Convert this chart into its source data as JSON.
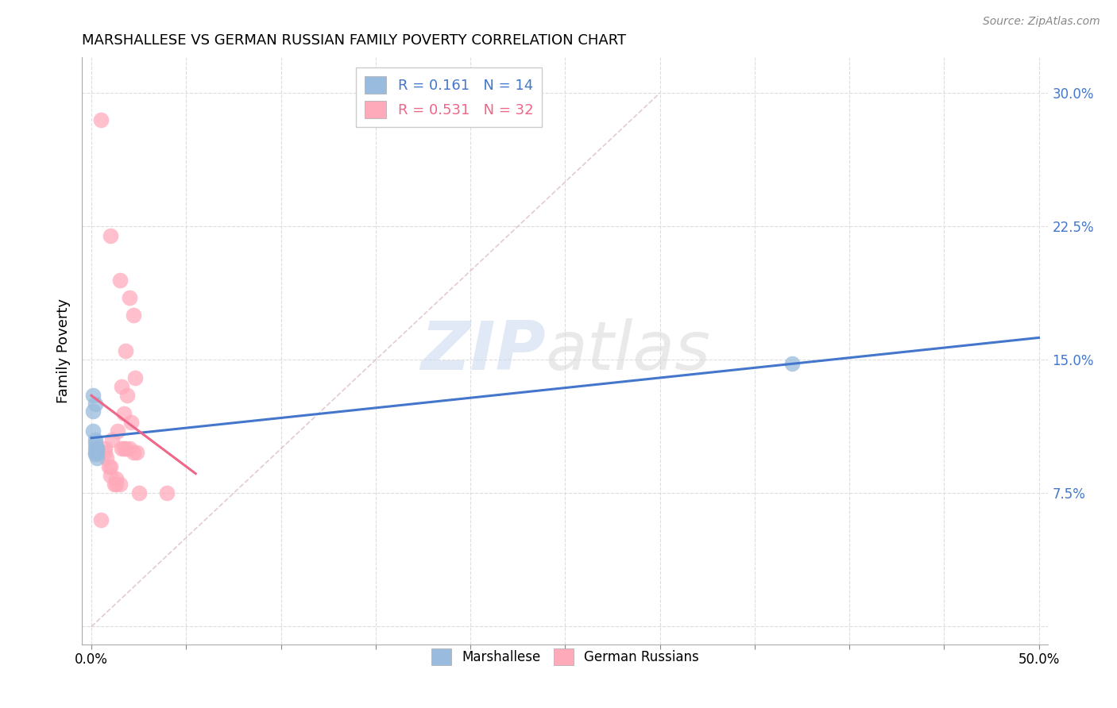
{
  "title": "MARSHALLESE VS GERMAN RUSSIAN FAMILY POVERTY CORRELATION CHART",
  "source": "Source: ZipAtlas.com",
  "ylabel": "Family Poverty",
  "ylim": [
    -0.01,
    0.32
  ],
  "xlim": [
    -0.005,
    0.505
  ],
  "legend_blue_r": "0.161",
  "legend_blue_n": "14",
  "legend_pink_r": "0.531",
  "legend_pink_n": "32",
  "blue_color": "#99BBDD",
  "pink_color": "#FFAABB",
  "blue_line_color": "#4477CC",
  "pink_line_color": "#EE6688",
  "watermark_zip": "ZIP",
  "watermark_atlas": "atlas",
  "marshallese_x": [
    0.001,
    0.001,
    0.002,
    0.001,
    0.002,
    0.002,
    0.002,
    0.002,
    0.002,
    0.003,
    0.003,
    0.003,
    0.003,
    0.37
  ],
  "marshallese_y": [
    0.121,
    0.13,
    0.125,
    0.11,
    0.105,
    0.103,
    0.1,
    0.098,
    0.097,
    0.1,
    0.1,
    0.098,
    0.095,
    0.148
  ],
  "german_x": [
    0.005,
    0.005,
    0.007,
    0.007,
    0.008,
    0.009,
    0.01,
    0.01,
    0.01,
    0.011,
    0.012,
    0.013,
    0.013,
    0.014,
    0.015,
    0.015,
    0.016,
    0.016,
    0.017,
    0.017,
    0.018,
    0.018,
    0.019,
    0.02,
    0.02,
    0.021,
    0.022,
    0.022,
    0.023,
    0.024,
    0.025,
    0.04
  ],
  "german_y": [
    0.285,
    0.06,
    0.1,
    0.098,
    0.095,
    0.09,
    0.22,
    0.09,
    0.085,
    0.105,
    0.08,
    0.083,
    0.08,
    0.11,
    0.195,
    0.08,
    0.135,
    0.1,
    0.12,
    0.1,
    0.155,
    0.1,
    0.13,
    0.185,
    0.1,
    0.115,
    0.175,
    0.098,
    0.14,
    0.098,
    0.075,
    0.075
  ],
  "xtick_positions": [
    0.0,
    0.05,
    0.1,
    0.15,
    0.2,
    0.25,
    0.3,
    0.35,
    0.4,
    0.45,
    0.5
  ],
  "ytick_positions": [
    0.0,
    0.075,
    0.15,
    0.225,
    0.3
  ],
  "ytick_labels": [
    "",
    "7.5%",
    "15.0%",
    "22.5%",
    "30.0%"
  ]
}
